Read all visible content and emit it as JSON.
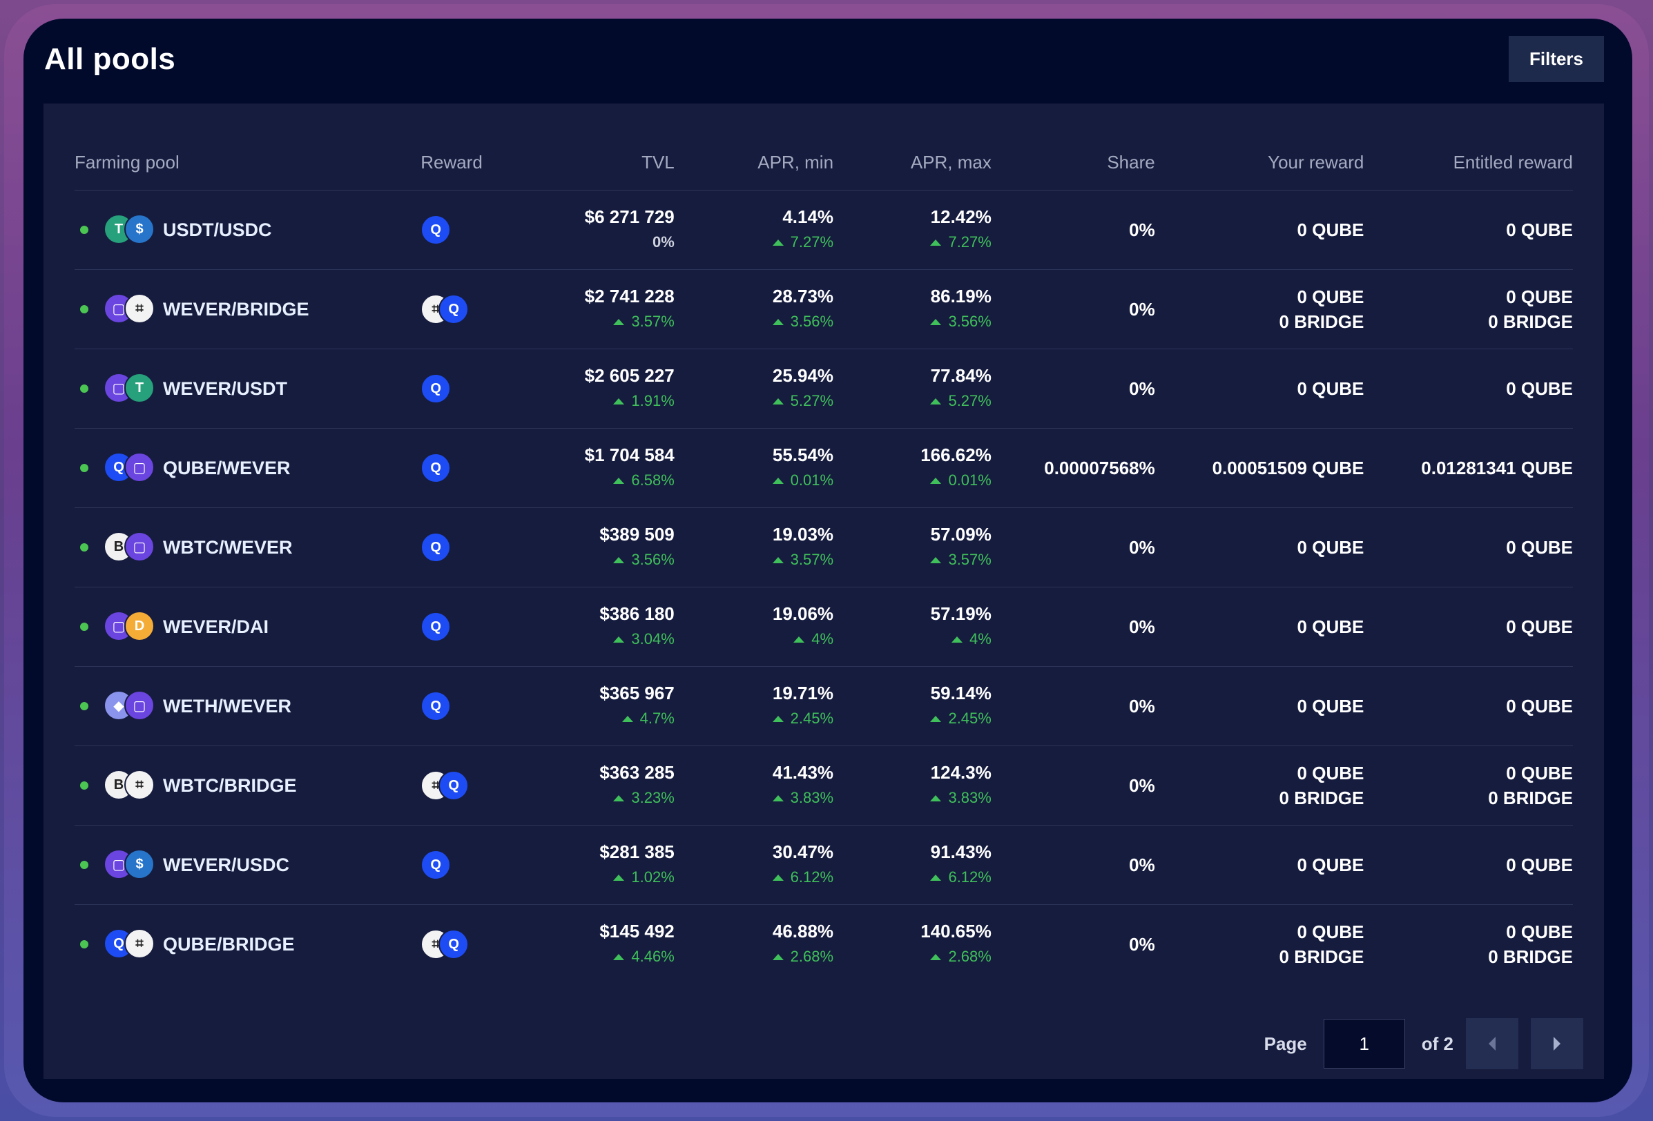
{
  "header": {
    "title": "All pools",
    "filters_label": "Filters"
  },
  "table": {
    "columns": [
      "Farming pool",
      "Reward",
      "TVL",
      "APR, min",
      "APR, max",
      "Share",
      "Your reward",
      "Entitled reward"
    ],
    "rows": [
      {
        "pool": "USDT/USDC",
        "icons": [
          "tether-icon",
          "usdc-icon"
        ],
        "reward_icons": [
          "qube-icon"
        ],
        "tvl": "$6 271 729",
        "tvl_change": "0%",
        "tvl_up": false,
        "apr_min": "4.14%",
        "apr_min_change": "7.27%",
        "apr_max": "12.42%",
        "apr_max_change": "7.27%",
        "share": "0%",
        "your_reward": [
          "0 QUBE"
        ],
        "entitled_reward": [
          "0 QUBE"
        ]
      },
      {
        "pool": "WEVER/BRIDGE",
        "icons": [
          "wever-icon",
          "bridge-icon"
        ],
        "reward_icons": [
          "bridge-icon",
          "qube-icon"
        ],
        "tvl": "$2 741 228",
        "tvl_change": "3.57%",
        "tvl_up": true,
        "apr_min": "28.73%",
        "apr_min_change": "3.56%",
        "apr_max": "86.19%",
        "apr_max_change": "3.56%",
        "share": "0%",
        "your_reward": [
          "0 QUBE",
          "0 BRIDGE"
        ],
        "entitled_reward": [
          "0 QUBE",
          "0 BRIDGE"
        ]
      },
      {
        "pool": "WEVER/USDT",
        "icons": [
          "wever-icon",
          "tether-icon"
        ],
        "reward_icons": [
          "qube-icon"
        ],
        "tvl": "$2 605 227",
        "tvl_change": "1.91%",
        "tvl_up": true,
        "apr_min": "25.94%",
        "apr_min_change": "5.27%",
        "apr_max": "77.84%",
        "apr_max_change": "5.27%",
        "share": "0%",
        "your_reward": [
          "0 QUBE"
        ],
        "entitled_reward": [
          "0 QUBE"
        ]
      },
      {
        "pool": "QUBE/WEVER",
        "icons": [
          "qube-icon",
          "wever-icon"
        ],
        "reward_icons": [
          "qube-icon"
        ],
        "tvl": "$1 704 584",
        "tvl_change": "6.58%",
        "tvl_up": true,
        "apr_min": "55.54%",
        "apr_min_change": "0.01%",
        "apr_max": "166.62%",
        "apr_max_change": "0.01%",
        "share": "0.00007568%",
        "your_reward": [
          "0.00051509 QUBE"
        ],
        "entitled_reward": [
          "0.01281341 QUBE"
        ]
      },
      {
        "pool": "WBTC/WEVER",
        "icons": [
          "wbtc-icon",
          "wever-icon"
        ],
        "reward_icons": [
          "qube-icon"
        ],
        "tvl": "$389 509",
        "tvl_change": "3.56%",
        "tvl_up": true,
        "apr_min": "19.03%",
        "apr_min_change": "3.57%",
        "apr_max": "57.09%",
        "apr_max_change": "3.57%",
        "share": "0%",
        "your_reward": [
          "0 QUBE"
        ],
        "entitled_reward": [
          "0 QUBE"
        ]
      },
      {
        "pool": "WEVER/DAI",
        "icons": [
          "wever-icon",
          "dai-icon"
        ],
        "reward_icons": [
          "qube-icon"
        ],
        "tvl": "$386 180",
        "tvl_change": "3.04%",
        "tvl_up": true,
        "apr_min": "19.06%",
        "apr_min_change": "4%",
        "apr_max": "57.19%",
        "apr_max_change": "4%",
        "share": "0%",
        "your_reward": [
          "0 QUBE"
        ],
        "entitled_reward": [
          "0 QUBE"
        ]
      },
      {
        "pool": "WETH/WEVER",
        "icons": [
          "weth-icon",
          "wever-icon"
        ],
        "reward_icons": [
          "qube-icon"
        ],
        "tvl": "$365 967",
        "tvl_change": "4.7%",
        "tvl_up": true,
        "apr_min": "19.71%",
        "apr_min_change": "2.45%",
        "apr_max": "59.14%",
        "apr_max_change": "2.45%",
        "share": "0%",
        "your_reward": [
          "0 QUBE"
        ],
        "entitled_reward": [
          "0 QUBE"
        ]
      },
      {
        "pool": "WBTC/BRIDGE",
        "icons": [
          "wbtc-icon",
          "bridge-icon"
        ],
        "reward_icons": [
          "bridge-icon",
          "qube-icon"
        ],
        "tvl": "$363 285",
        "tvl_change": "3.23%",
        "tvl_up": true,
        "apr_min": "41.43%",
        "apr_min_change": "3.83%",
        "apr_max": "124.3%",
        "apr_max_change": "3.83%",
        "share": "0%",
        "your_reward": [
          "0 QUBE",
          "0 BRIDGE"
        ],
        "entitled_reward": [
          "0 QUBE",
          "0 BRIDGE"
        ]
      },
      {
        "pool": "WEVER/USDC",
        "icons": [
          "wever-icon",
          "usdc-icon"
        ],
        "reward_icons": [
          "qube-icon"
        ],
        "tvl": "$281 385",
        "tvl_change": "1.02%",
        "tvl_up": true,
        "apr_min": "30.47%",
        "apr_min_change": "6.12%",
        "apr_max": "91.43%",
        "apr_max_change": "6.12%",
        "share": "0%",
        "your_reward": [
          "0 QUBE"
        ],
        "entitled_reward": [
          "0 QUBE"
        ]
      },
      {
        "pool": "QUBE/BRIDGE",
        "icons": [
          "qube-icon",
          "bridge-icon"
        ],
        "reward_icons": [
          "bridge-icon",
          "qube-icon"
        ],
        "tvl": "$145 492",
        "tvl_change": "4.46%",
        "tvl_up": true,
        "apr_min": "46.88%",
        "apr_min_change": "2.68%",
        "apr_max": "140.65%",
        "apr_max_change": "2.68%",
        "share": "0%",
        "your_reward": [
          "0 QUBE",
          "0 BRIDGE"
        ],
        "entitled_reward": [
          "0 QUBE",
          "0 BRIDGE"
        ]
      }
    ]
  },
  "pagination": {
    "page_label": "Page",
    "current_page": "1",
    "of_label": "of 2"
  },
  "colors": {
    "accent_green": "#3fc05a",
    "status_dot": "#4cc653",
    "panel_bg": "#161c3e",
    "window_bg": "#020a2c"
  }
}
